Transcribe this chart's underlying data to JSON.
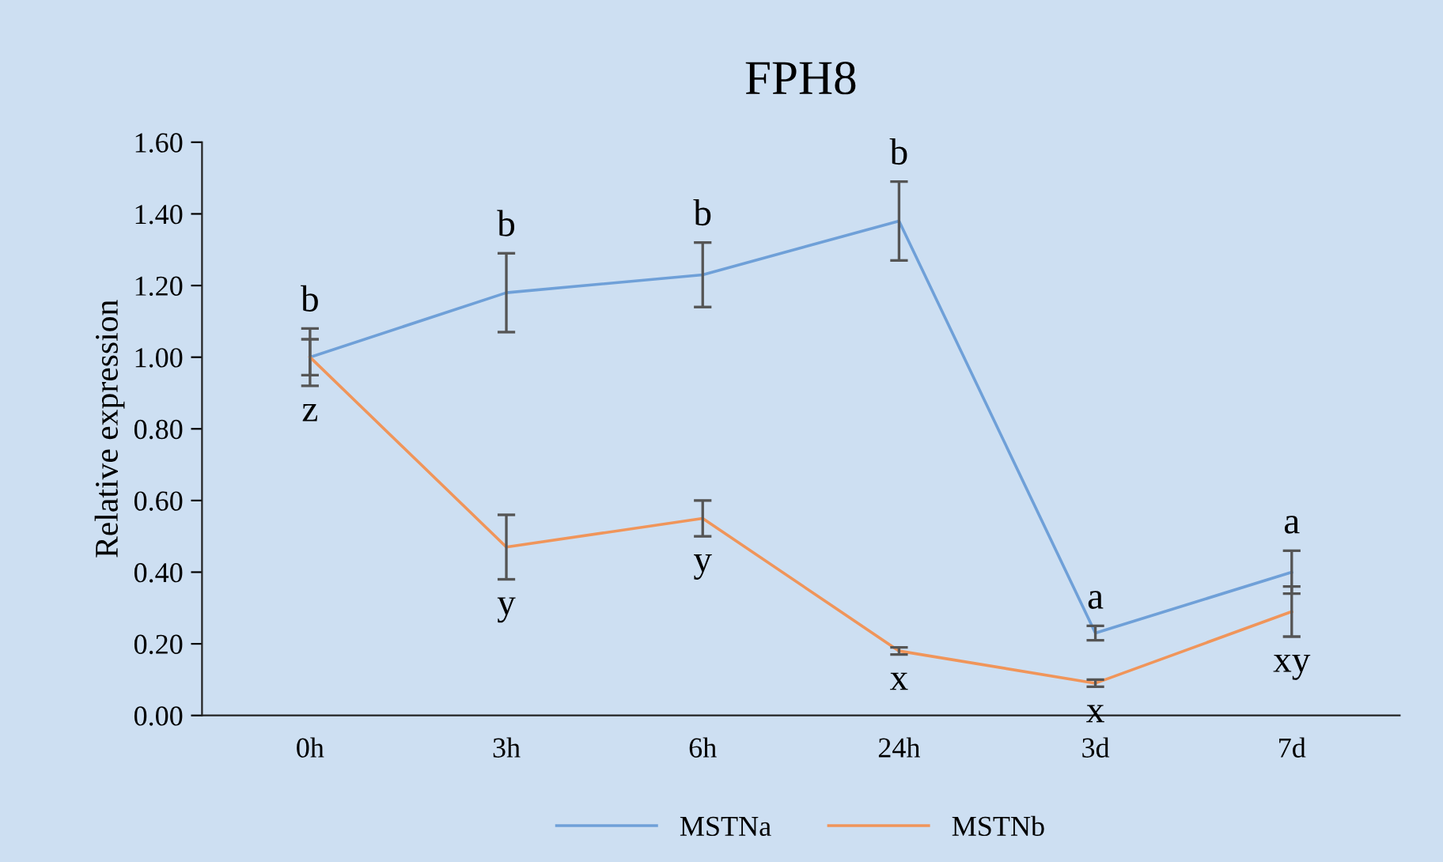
{
  "chart_data": {
    "type": "line",
    "title": "FPH8",
    "ylabel": "Relative expression",
    "categories": [
      "0h",
      "3h",
      "6h",
      "24h",
      "3d",
      "7d"
    ],
    "series": [
      {
        "name": "MSTNa",
        "color": "#6fa0d8",
        "values": [
          1.0,
          1.18,
          1.23,
          1.38,
          0.23,
          0.4
        ],
        "errors": [
          0.08,
          0.11,
          0.09,
          0.11,
          0.02,
          0.06
        ]
      },
      {
        "name": "MSTNb",
        "color": "#f0955a",
        "values": [
          1.0,
          0.47,
          0.55,
          0.18,
          0.09,
          0.29
        ],
        "errors": [
          0.05,
          0.09,
          0.05,
          0.01,
          0.01,
          0.07
        ]
      }
    ],
    "ylim": [
      0,
      1.6
    ],
    "yticks": [
      {
        "value": 0,
        "label": "0.00"
      },
      {
        "value": 0.2,
        "label": "0.20"
      },
      {
        "value": 0.4,
        "label": "0.40"
      },
      {
        "value": 0.6,
        "label": "0.60"
      },
      {
        "value": 0.8,
        "label": "0.80"
      },
      {
        "value": 1.0,
        "label": "1.00"
      },
      {
        "value": 1.2,
        "label": "1.20"
      },
      {
        "value": 1.4,
        "label": "1.40"
      },
      {
        "value": 1.6,
        "label": "1.60"
      }
    ],
    "annotations": [
      {
        "text": "b",
        "x": "0h",
        "y": 1.0
      },
      {
        "text": "z",
        "x": "0h",
        "y": 1.0
      },
      {
        "text": "b",
        "x": "3h",
        "y": 1.18
      },
      {
        "text": "y",
        "x": "3h",
        "y": 0.47
      },
      {
        "text": "b",
        "x": "6h",
        "y": 1.23
      },
      {
        "text": "y",
        "x": "6h",
        "y": 0.55
      },
      {
        "text": "b",
        "x": "24h",
        "y": 1.38
      },
      {
        "text": "x",
        "x": "24h",
        "y": 0.18
      },
      {
        "text": "a",
        "x": "3d",
        "y": 0.23
      },
      {
        "text": "x",
        "x": "3d",
        "y": 0.09
      },
      {
        "text": "a",
        "x": "7d",
        "y": 0.4
      },
      {
        "text": "xy",
        "x": "7d",
        "y": 0.29
      }
    ],
    "grid": false,
    "legend": "bottom",
    "marker": "none",
    "line_style": "solid"
  }
}
